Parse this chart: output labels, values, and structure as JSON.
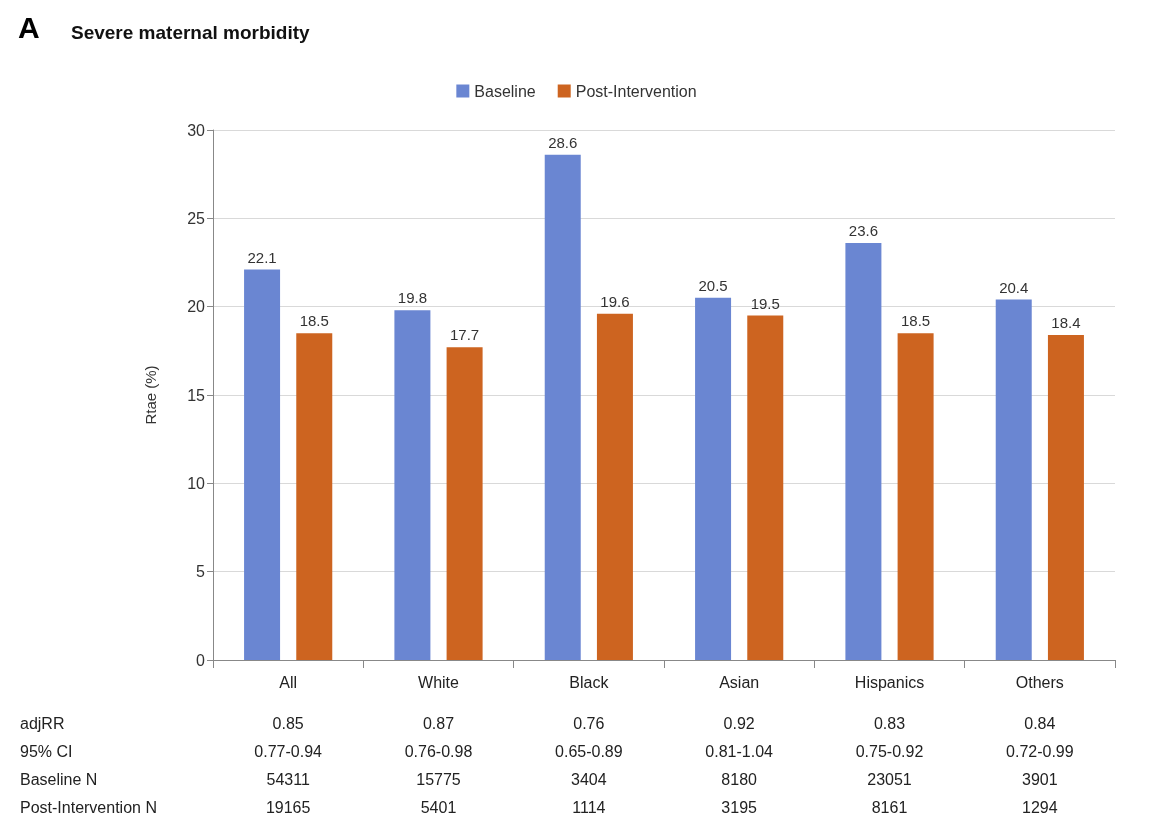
{
  "chart_data": {
    "type": "bar",
    "title": "Severe maternal morbidity",
    "ylabel": "Rtae (%)",
    "categories": [
      "All",
      "White",
      "Black",
      "Asian",
      "Hispanics",
      "Others"
    ],
    "series": [
      {
        "name": "Baseline",
        "color": "#6a86d2",
        "values": [
          22.1,
          19.8,
          28.6,
          20.5,
          23.6,
          20.4
        ]
      },
      {
        "name": "Post-Intervention",
        "color": "#cd6420",
        "values": [
          18.5,
          17.7,
          19.6,
          19.5,
          18.5,
          18.4
        ]
      }
    ],
    "ylim": [
      0,
      30
    ],
    "yticks": [
      0,
      5,
      10,
      15,
      20,
      25,
      30
    ],
    "grid": "y",
    "legend": "top",
    "data_labels": true,
    "annotations": [
      "A",
      "adjRR",
      "0.85",
      "0.87",
      "0.76",
      "0.92",
      "0.83",
      "0.84",
      "95% CI",
      "0.77-0.94",
      "0.76-0.98",
      "0.65-0.89",
      "0.81-1.04",
      "0.75-0.92",
      "0.72-0.99",
      "Baseline N",
      "54311",
      "15775",
      "3404",
      "8180",
      "23051",
      "3901",
      "Post-Intervention N",
      "19165",
      "5401",
      "1114",
      "3195",
      "8161",
      "1294"
    ]
  }
}
